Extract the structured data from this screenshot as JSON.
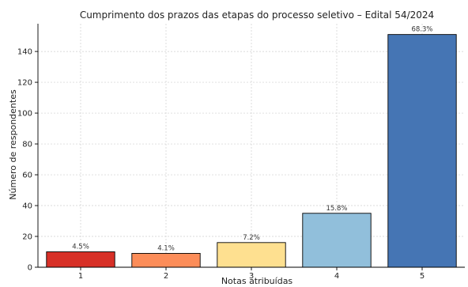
{
  "chart_data": {
    "type": "bar",
    "title": "Cumprimento dos prazos das etapas do processo seletivo – Edital 54/2024",
    "xlabel": "Notas atribuídas",
    "ylabel": "Número de respondentes",
    "categories": [
      "1",
      "2",
      "3",
      "4",
      "5"
    ],
    "values": [
      10,
      9,
      16,
      35,
      151
    ],
    "data_labels": [
      "4.5%",
      "4.1%",
      "7.2%",
      "15.8%",
      "68.3%"
    ],
    "colors": [
      "#d73027",
      "#fc8d59",
      "#fee090",
      "#91bfdb",
      "#4575b4"
    ],
    "ylim": [
      0,
      158
    ],
    "yticks": [
      0,
      20,
      40,
      60,
      80,
      100,
      120,
      140
    ],
    "grid": true
  }
}
